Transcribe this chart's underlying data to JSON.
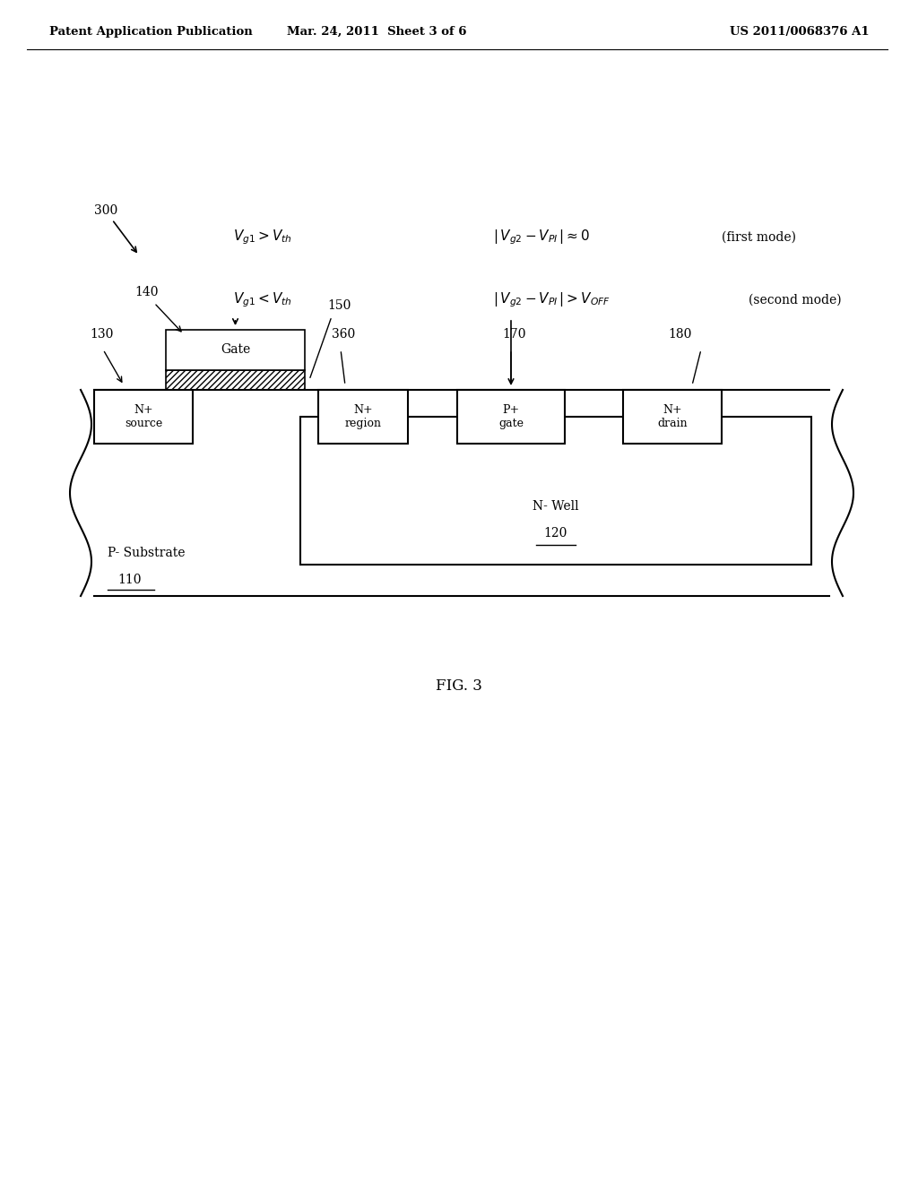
{
  "header_left": "Patent Application Publication",
  "header_center": "Mar. 24, 2011  Sheet 3 of 6",
  "header_right": "US 2011/0068376 A1",
  "fig_label": "FIG. 3",
  "ref_300": "300",
  "ref_110": "110",
  "ref_120": "120",
  "ref_130": "130",
  "ref_140": "140",
  "ref_150": "150",
  "ref_170": "170",
  "ref_180": "180",
  "ref_360": "360",
  "label_substrate": "P- Substrate",
  "label_nwell": "N- Well",
  "label_source": "N+\nsource",
  "label_nregion": "N+\nregion",
  "label_pgate": "P+\ngate",
  "label_ndrain": "N+\ndrain",
  "label_gate": "Gate",
  "eq1_left": "$V_{g1} > V_{th}$",
  "eq1_right": "$|\\, V_{g2} - V_{PI}\\,| \\approx 0$",
  "eq1_mode": "(first mode)",
  "eq2_left": "$V_{g1} < V_{th}$",
  "eq2_right": "$|\\, V_{g2} - V_{PI}\\,| > V_{OFF}$",
  "eq2_mode": "(second mode)",
  "bg_color": "#ffffff",
  "line_color": "#000000",
  "font_color": "#000000"
}
